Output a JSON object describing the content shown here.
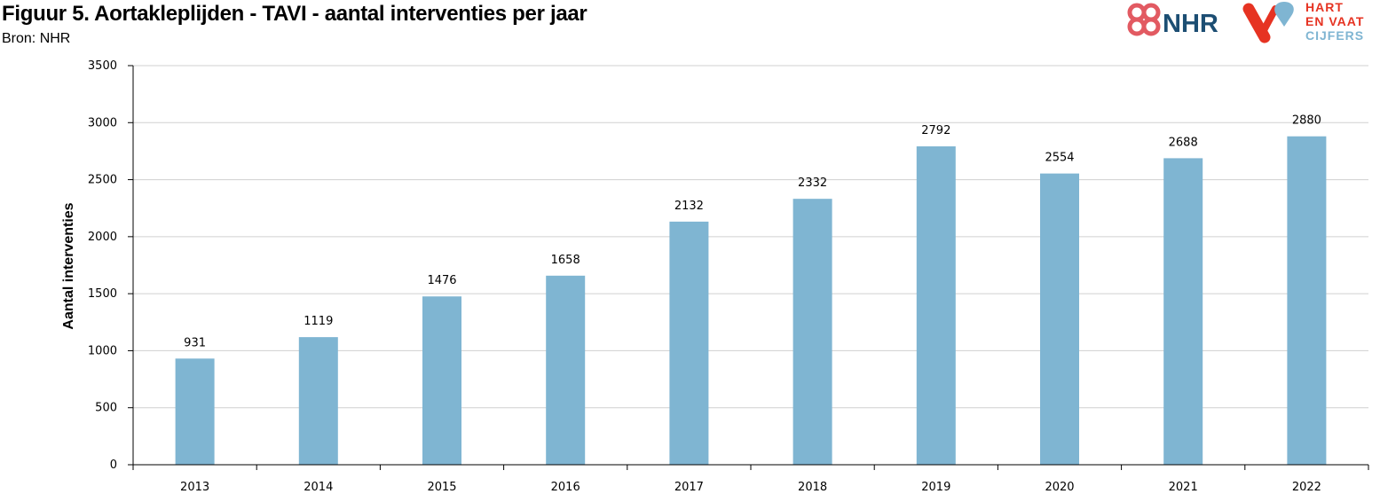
{
  "header": {
    "title": "Figuur 5. Aortakleplijden - TAVI - aantal interventies per jaar",
    "source": "Bron: NHR"
  },
  "logos": {
    "nhr_text": "NHR",
    "hvc_line1": "HART",
    "hvc_line2": "EN VAAT",
    "hvc_line3": "CIJFERS"
  },
  "colors": {
    "bar": "#7fb5d2",
    "grid": "#d0d0d0",
    "axis": "#000000",
    "nhr_red": "#e25a62",
    "nhr_blue": "#1c4e73",
    "hvc_red": "#e63322",
    "hvc_blue": "#7fb5d2"
  },
  "chart_data": {
    "type": "bar",
    "categories": [
      "2013",
      "2014",
      "2015",
      "2016",
      "2017",
      "2018",
      "2019",
      "2020",
      "2021",
      "2022"
    ],
    "values": [
      931,
      1119,
      1476,
      1658,
      2132,
      2332,
      2792,
      2554,
      2688,
      2880
    ],
    "title": "Figuur 5. Aortakleplijden - TAVI - aantal interventies per jaar",
    "xlabel": "",
    "ylabel": "Aantal interventies",
    "ylim": [
      0,
      3500
    ],
    "yticks": [
      0,
      500,
      1000,
      1500,
      2000,
      2500,
      3000,
      3500
    ],
    "grid": true,
    "data_labels": true,
    "legend": "none"
  }
}
